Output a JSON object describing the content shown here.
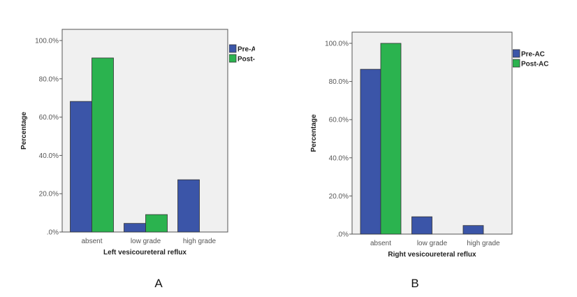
{
  "chart_data": [
    {
      "type": "bar",
      "panel_label": "A",
      "xlabel": "Left vesicoureteral reflux",
      "ylabel": "Percentage",
      "ylim": [
        0,
        100
      ],
      "yticks": [
        ".0%",
        "20.0%",
        "40.0%",
        "60.0%",
        "80.0%",
        "100.0%"
      ],
      "categories": [
        "absent",
        "low grade",
        "high grade"
      ],
      "legend_position": "right",
      "grid": false,
      "series": [
        {
          "name": "Pre-A",
          "color": "#3b55a8",
          "values": [
            68.2,
            4.5,
            27.3
          ]
        },
        {
          "name": "Post-",
          "color": "#2bb34f",
          "values": [
            90.9,
            9.1,
            0
          ]
        }
      ]
    },
    {
      "type": "bar",
      "panel_label": "B",
      "xlabel": "Right vesicoureteral reflux",
      "ylabel": "Percentage",
      "ylim": [
        0,
        100
      ],
      "yticks": [
        ".0%",
        "20.0%",
        "40.0%",
        "60.0%",
        "80.0%",
        "100.0%"
      ],
      "categories": [
        "absent",
        "low grade",
        "high grade"
      ],
      "legend_position": "right",
      "grid": false,
      "series": [
        {
          "name": "Pre-AC",
          "color": "#3b55a8",
          "values": [
            86.4,
            9.1,
            4.5
          ]
        },
        {
          "name": "Post-AC",
          "color": "#2bb34f",
          "values": [
            100,
            0,
            0
          ]
        }
      ]
    }
  ],
  "plot_background": "#f0f0f0"
}
